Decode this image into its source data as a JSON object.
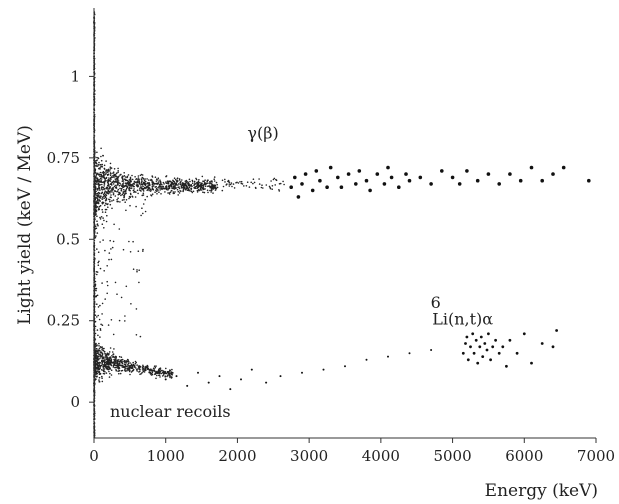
{
  "chart_data": {
    "type": "scatter",
    "xlabel": "Energy (keV)",
    "ylabel": "Light yield (keV / MeV)",
    "xlim": [
      0,
      7000
    ],
    "ylim": [
      -0.11,
      1.21
    ],
    "x_ticks": [
      0,
      1000,
      2000,
      3000,
      4000,
      5000,
      6000,
      7000
    ],
    "x_tick_labels": [
      "0",
      "1000",
      "2000",
      "3000",
      "4000",
      "5000",
      "6000",
      "7000"
    ],
    "y_ticks": [
      0,
      0.25,
      0.5,
      0.75,
      1
    ],
    "y_tick_labels": [
      "0",
      "0.25",
      "0.5",
      "0.75",
      "1"
    ],
    "grid": false,
    "annotations": [
      {
        "text": "γ(β)",
        "x": 2000,
        "y": 0.8
      },
      {
        "text": "6",
        "x": 4750,
        "y": 0.27
      },
      {
        "text": "Li(n,t)α",
        "x": 4800,
        "y": 0.25
      },
      {
        "text": "nuclear recoils",
        "x": 850,
        "y": -0.04
      }
    ],
    "series": [
      {
        "values": "γ(β) band: dense dots at low energy, sparse large dots out to ~6900 keV",
        "points": [
          [
            2750,
            0.66
          ],
          [
            2800,
            0.69
          ],
          [
            2850,
            0.63
          ],
          [
            2900,
            0.67
          ],
          [
            2950,
            0.7
          ],
          [
            3050,
            0.65
          ],
          [
            3100,
            0.71
          ],
          [
            3150,
            0.68
          ],
          [
            3250,
            0.66
          ],
          [
            3300,
            0.72
          ],
          [
            3400,
            0.69
          ],
          [
            3450,
            0.66
          ],
          [
            3550,
            0.7
          ],
          [
            3650,
            0.67
          ],
          [
            3700,
            0.71
          ],
          [
            3800,
            0.68
          ],
          [
            3850,
            0.65
          ],
          [
            3950,
            0.7
          ],
          [
            4050,
            0.67
          ],
          [
            4100,
            0.72
          ],
          [
            4150,
            0.69
          ],
          [
            4250,
            0.66
          ],
          [
            4350,
            0.7
          ],
          [
            4400,
            0.68
          ],
          [
            4550,
            0.69
          ],
          [
            4700,
            0.67
          ],
          [
            4850,
            0.71
          ],
          [
            5000,
            0.69
          ],
          [
            5100,
            0.67
          ],
          [
            5200,
            0.71
          ],
          [
            5350,
            0.68
          ],
          [
            5500,
            0.7
          ],
          [
            5650,
            0.67
          ],
          [
            5800,
            0.7
          ],
          [
            5950,
            0.68
          ],
          [
            6100,
            0.72
          ],
          [
            6250,
            0.68
          ],
          [
            6400,
            0.7
          ],
          [
            6550,
            0.72
          ],
          [
            6900,
            0.68
          ]
        ]
      },
      {
        "values": "6Li(n,t)α cluster",
        "points": [
          [
            5150,
            0.15
          ],
          [
            5180,
            0.18
          ],
          [
            5200,
            0.2
          ],
          [
            5220,
            0.13
          ],
          [
            5250,
            0.17
          ],
          [
            5280,
            0.21
          ],
          [
            5300,
            0.15
          ],
          [
            5330,
            0.19
          ],
          [
            5350,
            0.12
          ],
          [
            5380,
            0.17
          ],
          [
            5400,
            0.2
          ],
          [
            5420,
            0.14
          ],
          [
            5450,
            0.18
          ],
          [
            5480,
            0.16
          ],
          [
            5500,
            0.21
          ],
          [
            5530,
            0.13
          ],
          [
            5560,
            0.17
          ],
          [
            5600,
            0.19
          ],
          [
            5650,
            0.15
          ],
          [
            5700,
            0.17
          ],
          [
            5750,
            0.11
          ],
          [
            5800,
            0.19
          ],
          [
            5900,
            0.15
          ],
          [
            6000,
            0.21
          ],
          [
            6100,
            0.12
          ],
          [
            6250,
            0.18
          ],
          [
            6400,
            0.17
          ],
          [
            6450,
            0.22
          ]
        ]
      },
      {
        "values": "nuclear recoils tail",
        "points": [
          [
            1000,
            0.07
          ],
          [
            1150,
            0.08
          ],
          [
            1300,
            0.05
          ],
          [
            1450,
            0.09
          ],
          [
            1600,
            0.06
          ],
          [
            1750,
            0.08
          ],
          [
            1900,
            0.04
          ],
          [
            2050,
            0.07
          ],
          [
            2200,
            0.1
          ],
          [
            2400,
            0.06
          ],
          [
            2600,
            0.08
          ],
          [
            2900,
            0.09
          ],
          [
            3200,
            0.1
          ],
          [
            3500,
            0.11
          ],
          [
            3800,
            0.13
          ],
          [
            4100,
            0.14
          ],
          [
            4400,
            0.15
          ],
          [
            4700,
            0.16
          ]
        ]
      }
    ]
  }
}
